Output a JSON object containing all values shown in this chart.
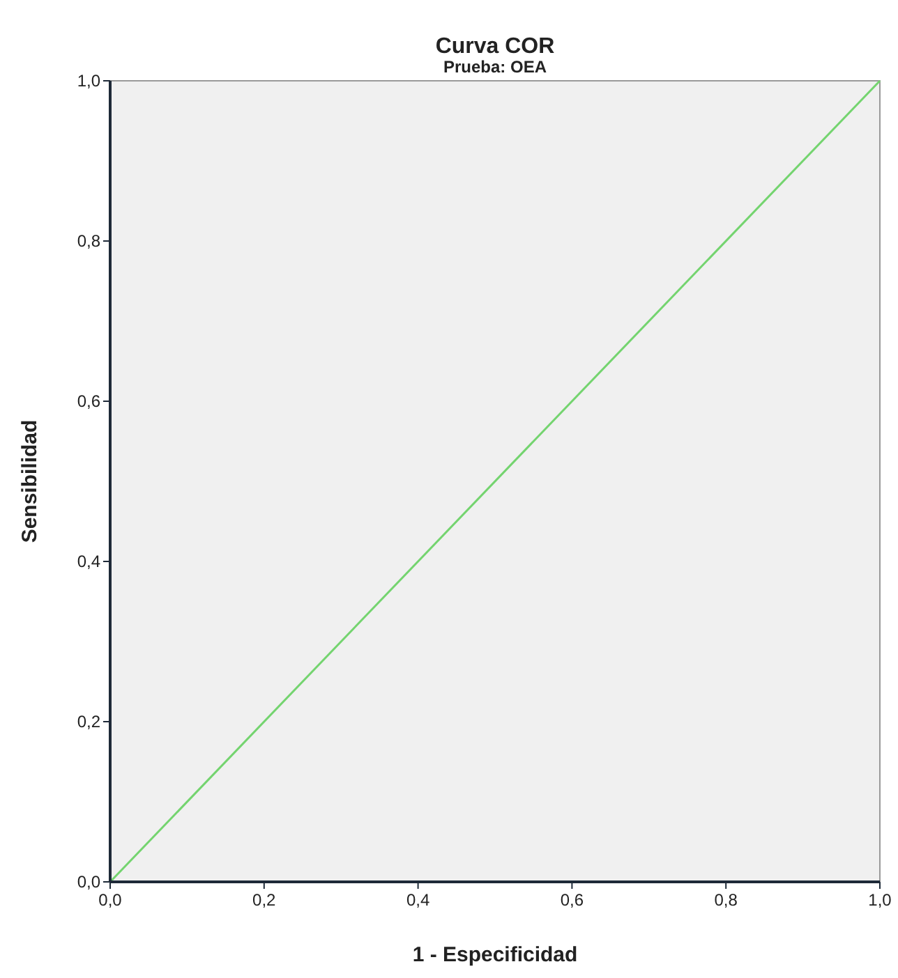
{
  "chart_data": {
    "type": "line",
    "title": "Curva COR",
    "subtitle": "Prueba: OEA",
    "xlabel": "1 - Especificidad",
    "ylabel": "Sensibilidad",
    "x": [
      0,
      1
    ],
    "series": [
      {
        "color": "#74d46f",
        "values": [
          0,
          1
        ]
      }
    ],
    "xlim": [
      0,
      1
    ],
    "ylim": [
      0,
      1
    ],
    "xticks": [
      {
        "value": 0,
        "label": "0,0"
      },
      {
        "value": 0.2,
        "label": "0,2"
      },
      {
        "value": 0.4,
        "label": "0,4"
      },
      {
        "value": 0.6,
        "label": "0,6"
      },
      {
        "value": 0.8,
        "label": "0,8"
      },
      {
        "value": 1,
        "label": "1,0"
      }
    ],
    "yticks": [
      {
        "value": 0,
        "label": "0,0"
      },
      {
        "value": 0.2,
        "label": "0,2"
      },
      {
        "value": 0.4,
        "label": "0,4"
      },
      {
        "value": 0.6,
        "label": "0,6"
      },
      {
        "value": 0.8,
        "label": "0,8"
      },
      {
        "value": 1,
        "label": "1,0"
      }
    ],
    "grid": false,
    "marker": "none",
    "line_style": "solid"
  }
}
